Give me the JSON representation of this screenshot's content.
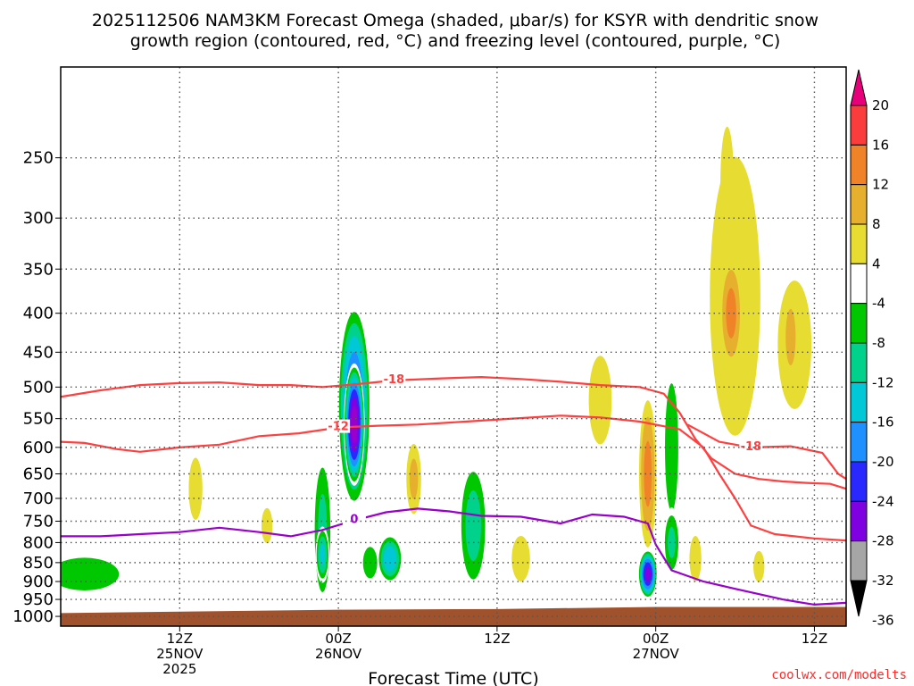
{
  "title_line1": "2025112506 NAM3KM Forecast Omega (shaded, μbar/s) for KSYR with dendritic snow",
  "title_line2": "growth region (contoured, red, °C) and freezing level (contoured, purple, °C)",
  "credit": "coolwx.com/modelts",
  "colors": {
    "terrain": "#a0522d",
    "dgz_contour": "#ff4040",
    "freezing_contour": "#9900cc",
    "grid": "#555555"
  },
  "chart_data": {
    "type": "heatmap",
    "xlabel": "Forecast Time (UTC)",
    "ylabel": "",
    "ylog": true,
    "ylim": [
      1030,
      190
    ],
    "y_ticks": [
      250,
      300,
      350,
      400,
      450,
      500,
      550,
      600,
      650,
      700,
      750,
      800,
      850,
      900,
      950,
      1000
    ],
    "xlim": [
      -15,
      84
    ],
    "x_ticks": [
      {
        "x": 0,
        "label": "12Z",
        "line2": "25NOV",
        "line3": "2025"
      },
      {
        "x": 20,
        "label": "00Z",
        "line2": "26NOV",
        "line3": ""
      },
      {
        "x": 40,
        "label": "12Z",
        "line2": "",
        "line3": ""
      },
      {
        "x": 60,
        "label": "00Z",
        "line2": "27NOV",
        "line3": ""
      },
      {
        "x": 80,
        "label": "12Z",
        "line2": "",
        "line3": ""
      }
    ],
    "colorbar": {
      "levels": [
        -36,
        -32,
        -28,
        -24,
        -20,
        -16,
        -12,
        -8,
        -4,
        4,
        8,
        12,
        16,
        20
      ],
      "colors": [
        "#a6a6a6",
        "#9900cc",
        "#7f00e0",
        "#2828ff",
        "#1e90ff",
        "#00c8d7",
        "#00d28c",
        "#00c800",
        "#ffffff",
        "#e6dc32",
        "#e6af2d",
        "#f08228",
        "#fa3c3c",
        "#e6007a"
      ],
      "labels": [
        "20",
        "16",
        "12",
        "8",
        "4",
        "-4",
        "-8",
        "-12",
        "-16",
        "-20",
        "-24",
        "-28",
        "-32",
        "-36"
      ]
    },
    "omega_features": [
      {
        "x": 2,
        "p": 680,
        "dx": 1.5,
        "dp": 110,
        "v": 4
      },
      {
        "x": 11,
        "p": 760,
        "dx": 1.2,
        "dp": 70,
        "v": 4
      },
      {
        "x": -12,
        "p": 880,
        "dx": 7,
        "dp": 70,
        "v": -11
      },
      {
        "x": 0,
        "p": 920,
        "dx": 5,
        "dp": 40,
        "v": -6
      },
      {
        "x": 10,
        "p": 940,
        "dx": 12,
        "dp": 35,
        "v": -6
      },
      {
        "x": 10,
        "p": 570,
        "dx": 2.2,
        "dp": 110,
        "v": -6
      },
      {
        "x": 13,
        "p": 500,
        "dx": 1.4,
        "dp": 120,
        "v": -6
      },
      {
        "x": 18,
        "p": 770,
        "dx": 1.5,
        "dp": 220,
        "v": -12
      },
      {
        "x": 18,
        "p": 830,
        "dx": 1,
        "dp": 80,
        "v": -16
      },
      {
        "x": 20,
        "p": 380,
        "dx": 1.3,
        "dp": 160,
        "v": -6
      },
      {
        "x": 22,
        "p": 530,
        "dx": 2.3,
        "dp": 180,
        "v": -24
      },
      {
        "x": 22,
        "p": 560,
        "dx": 1.4,
        "dp": 110,
        "v": -32
      },
      {
        "x": 24,
        "p": 850,
        "dx": 2,
        "dp": 90,
        "v": -8
      },
      {
        "x": 26.5,
        "p": 840,
        "dx": 1.8,
        "dp": 70,
        "v": -18
      },
      {
        "x": 25,
        "p": 620,
        "dx": 1.3,
        "dp": 80,
        "v": -6
      },
      {
        "x": 29.5,
        "p": 660,
        "dx": 1.2,
        "dp": 90,
        "v": 8
      },
      {
        "x": 37,
        "p": 760,
        "dx": 2.2,
        "dp": 180,
        "v": -13
      },
      {
        "x": 43,
        "p": 840,
        "dx": 2,
        "dp": 100,
        "v": 4
      },
      {
        "x": 53,
        "p": 520,
        "dx": 2.5,
        "dp": 120,
        "v": 4
      },
      {
        "x": 57.5,
        "p": 820,
        "dx": 2.8,
        "dp": 160,
        "v": -7
      },
      {
        "x": 59,
        "p": 480,
        "dx": 1.6,
        "dp": 180,
        "v": -6
      },
      {
        "x": 59,
        "p": 650,
        "dx": 1.3,
        "dp": 170,
        "v": 12
      },
      {
        "x": 60.5,
        "p": 350,
        "dx": 1.5,
        "dp": 90,
        "v": -6
      },
      {
        "x": 59,
        "p": 880,
        "dx": 1.3,
        "dp": 70,
        "v": -28
      },
      {
        "x": 62,
        "p": 600,
        "dx": 1.6,
        "dp": 220,
        "v": -9
      },
      {
        "x": 62,
        "p": 800,
        "dx": 1.3,
        "dp": 100,
        "v": -12
      },
      {
        "x": 65,
        "p": 840,
        "dx": 1.3,
        "dp": 100,
        "v": 4
      },
      {
        "x": 70,
        "p": 380,
        "dx": 4.5,
        "dp": 220,
        "v": 6
      },
      {
        "x": 69,
        "p": 270,
        "dx": 1.3,
        "dp": 70,
        "v": 5
      },
      {
        "x": 69.5,
        "p": 400,
        "dx": 1.7,
        "dp": 80,
        "v": 12
      },
      {
        "x": 77.5,
        "p": 440,
        "dx": 3,
        "dp": 120,
        "v": 6
      },
      {
        "x": 77,
        "p": 430,
        "dx": 1.2,
        "dp": 70,
        "v": 9
      },
      {
        "x": 73,
        "p": 860,
        "dx": 1.2,
        "dp": 70,
        "v": 4
      },
      {
        "x": 76,
        "p": 760,
        "dx": 1.3,
        "dp": 160,
        "v": -6
      },
      {
        "x": 81,
        "p": 850,
        "dx": 2.5,
        "dp": 60,
        "v": -6
      },
      {
        "x": 84,
        "p": 850,
        "dx": 0.8,
        "dp": 70,
        "v": -6
      }
    ],
    "contours": [
      {
        "name": "DGZ -18",
        "label": "-18",
        "points": [
          [
            -15,
            515
          ],
          [
            -10,
            505
          ],
          [
            -5,
            497
          ],
          [
            0,
            494
          ],
          [
            5,
            493
          ],
          [
            10,
            497
          ],
          [
            14,
            497
          ],
          [
            18,
            500
          ],
          [
            22,
            496
          ],
          [
            27,
            490
          ],
          [
            33,
            487
          ],
          [
            38,
            485
          ],
          [
            43,
            488
          ],
          [
            48,
            492
          ],
          [
            53,
            497
          ],
          [
            58,
            500
          ],
          [
            61,
            510
          ],
          [
            63,
            540
          ],
          [
            65,
            585
          ],
          [
            67,
            620
          ],
          [
            70,
            650
          ],
          [
            73,
            660
          ],
          [
            76,
            665
          ],
          [
            79,
            668
          ],
          [
            82,
            670
          ],
          [
            84,
            680
          ]
        ]
      },
      {
        "name": "DGZ -18 upper",
        "label": "-18",
        "points": [
          [
            64,
            560
          ],
          [
            68,
            590
          ],
          [
            72,
            600
          ],
          [
            77,
            598
          ],
          [
            81,
            610
          ],
          [
            83,
            650
          ],
          [
            84,
            660
          ]
        ]
      },
      {
        "name": "DGZ -12",
        "label": "-12",
        "points": [
          [
            -15,
            590
          ],
          [
            -12,
            592
          ],
          [
            -8,
            603
          ],
          [
            -5,
            608
          ],
          [
            0,
            600
          ],
          [
            5,
            595
          ],
          [
            10,
            580
          ],
          [
            15,
            575
          ],
          [
            20,
            565
          ],
          [
            25,
            562
          ],
          [
            30,
            560
          ],
          [
            36,
            555
          ],
          [
            42,
            550
          ],
          [
            48,
            545
          ],
          [
            53,
            548
          ],
          [
            58,
            555
          ],
          [
            63,
            568
          ],
          [
            66,
            600
          ],
          [
            68,
            650
          ],
          [
            70,
            700
          ],
          [
            72,
            760
          ],
          [
            75,
            780
          ],
          [
            80,
            790
          ],
          [
            84,
            795
          ]
        ]
      },
      {
        "name": "freezing 0",
        "label": "0",
        "points": [
          [
            -15,
            785
          ],
          [
            -10,
            785
          ],
          [
            -5,
            780
          ],
          [
            0,
            775
          ],
          [
            5,
            765
          ],
          [
            10,
            775
          ],
          [
            14,
            785
          ],
          [
            18,
            770
          ],
          [
            22,
            748
          ],
          [
            26,
            730
          ],
          [
            30,
            722
          ],
          [
            34,
            728
          ],
          [
            38,
            738
          ],
          [
            43,
            740
          ],
          [
            48,
            755
          ],
          [
            52,
            735
          ],
          [
            56,
            740
          ],
          [
            59,
            755
          ],
          [
            60,
            805
          ],
          [
            62,
            870
          ],
          [
            66,
            900
          ],
          [
            70,
            920
          ],
          [
            76,
            950
          ],
          [
            80,
            965
          ],
          [
            84,
            960
          ]
        ]
      }
    ],
    "terrain_top": [
      [
        -15,
        990
      ],
      [
        20,
        980
      ],
      [
        40,
        978
      ],
      [
        60,
        972
      ],
      [
        84,
        972
      ]
    ]
  }
}
